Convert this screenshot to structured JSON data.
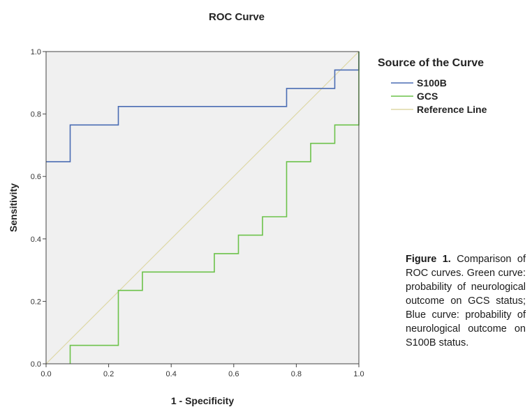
{
  "chart_data": {
    "type": "line",
    "title": "ROC Curve",
    "xlabel": "1 - Specificity",
    "ylabel": "Sensitivity",
    "xlim": [
      0.0,
      1.0
    ],
    "ylim": [
      0.0,
      1.0
    ],
    "x_ticks": [
      "0.0",
      "0.2",
      "0.4",
      "0.6",
      "0.8",
      "1.0"
    ],
    "y_ticks": [
      "0.0",
      "0.2",
      "0.4",
      "0.6",
      "0.8",
      "1.0"
    ],
    "legend_title": "Source of the Curve",
    "legend_position": "right",
    "grid": false,
    "plot_background": "#f0f0f0",
    "series": [
      {
        "name": "S100B",
        "color": "#4a6cb3",
        "points": [
          [
            0.0,
            0.647
          ],
          [
            0.077,
            0.647
          ],
          [
            0.077,
            0.765
          ],
          [
            0.231,
            0.765
          ],
          [
            0.231,
            0.824
          ],
          [
            0.769,
            0.824
          ],
          [
            0.769,
            0.882
          ],
          [
            0.923,
            0.882
          ],
          [
            0.923,
            0.941
          ],
          [
            1.0,
            0.941
          ],
          [
            1.0,
            1.0
          ]
        ]
      },
      {
        "name": "GCS",
        "color": "#6cc24a",
        "points": [
          [
            0.077,
            0.0
          ],
          [
            0.077,
            0.059
          ],
          [
            0.231,
            0.059
          ],
          [
            0.231,
            0.235
          ],
          [
            0.308,
            0.235
          ],
          [
            0.308,
            0.294
          ],
          [
            0.538,
            0.294
          ],
          [
            0.538,
            0.353
          ],
          [
            0.615,
            0.353
          ],
          [
            0.615,
            0.412
          ],
          [
            0.692,
            0.412
          ],
          [
            0.692,
            0.471
          ],
          [
            0.769,
            0.471
          ],
          [
            0.769,
            0.647
          ],
          [
            0.846,
            0.647
          ],
          [
            0.846,
            0.706
          ],
          [
            0.923,
            0.706
          ],
          [
            0.923,
            0.765
          ],
          [
            1.0,
            0.765
          ],
          [
            1.0,
            1.0
          ]
        ]
      },
      {
        "name": "Reference Line",
        "color": "#ded8a6",
        "points": [
          [
            0.0,
            0.0
          ],
          [
            1.0,
            1.0
          ]
        ]
      }
    ]
  },
  "caption": {
    "label": "Figure 1.",
    "text": " Comparison of ROC curves. Green curve: probability of neurological outcome on GCS status; Blue curve: probability of neurological outcome on S100B status."
  }
}
